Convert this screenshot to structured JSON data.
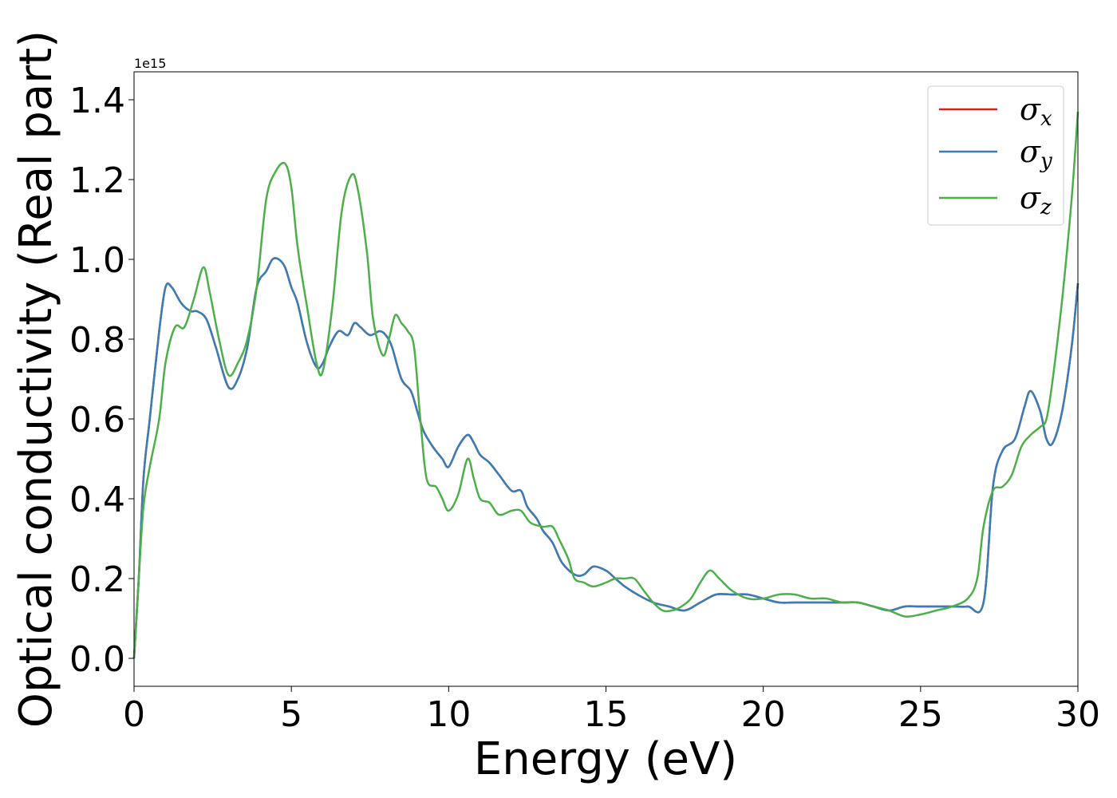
{
  "chart_data": {
    "type": "line",
    "xlabel": "Energy (eV)",
    "ylabel": "Optical conductivity (Real part)",
    "y_offset_text": "1e15",
    "xlim": [
      0,
      30
    ],
    "ylim": [
      -0.07,
      1.47
    ],
    "y_multiplier": 1000000000000000.0,
    "x_ticks": [
      0,
      5,
      10,
      15,
      20,
      25,
      30
    ],
    "x_tick_labels": [
      "0",
      "5",
      "10",
      "15",
      "20",
      "25",
      "30"
    ],
    "y_ticks": [
      0.0,
      0.2,
      0.4,
      0.6,
      0.8,
      1.0,
      1.2,
      1.4
    ],
    "y_tick_labels": [
      "0.0",
      "0.2",
      "0.4",
      "0.6",
      "0.8",
      "1.0",
      "1.2",
      "1.4"
    ],
    "grid": false,
    "legend_position": "top-right",
    "series": [
      {
        "name": "σx",
        "symbol": "σ",
        "subscript": "x",
        "color": "#e41a1c",
        "x": [
          0,
          0.15,
          0.3,
          0.5,
          0.8,
          1.0,
          1.2,
          1.5,
          1.8,
          2.0,
          2.3,
          2.6,
          3.0,
          3.3,
          3.6,
          3.9,
          4.2,
          4.4,
          4.6,
          4.8,
          5.0,
          5.2,
          5.5,
          5.8,
          6.0,
          6.2,
          6.5,
          6.8,
          7.0,
          7.2,
          7.5,
          7.8,
          8.0,
          8.2,
          8.5,
          8.8,
          9.0,
          9.2,
          9.5,
          9.8,
          10.0,
          10.3,
          10.6,
          10.8,
          11.0,
          11.3,
          11.6,
          12.0,
          12.3,
          12.5,
          12.8,
          13.0,
          13.3,
          13.6,
          14.0,
          14.3,
          14.6,
          15.0,
          15.3,
          15.6,
          16.0,
          16.5,
          17.0,
          17.5,
          18.0,
          18.5,
          19.0,
          19.5,
          20.0,
          20.5,
          21.0,
          21.5,
          22.0,
          22.5,
          23.0,
          23.5,
          24.0,
          24.5,
          25.0,
          25.5,
          26.0,
          26.5,
          27.0,
          27.3,
          27.6,
          28.0,
          28.3,
          28.5,
          28.8,
          29.0,
          29.2,
          29.5,
          29.8,
          30.0
        ],
        "y": [
          0.0,
          0.2,
          0.45,
          0.6,
          0.82,
          0.93,
          0.93,
          0.89,
          0.87,
          0.87,
          0.85,
          0.78,
          0.68,
          0.7,
          0.78,
          0.93,
          0.97,
          1.0,
          1.0,
          0.98,
          0.93,
          0.89,
          0.79,
          0.73,
          0.74,
          0.78,
          0.82,
          0.81,
          0.84,
          0.83,
          0.81,
          0.82,
          0.81,
          0.78,
          0.7,
          0.67,
          0.62,
          0.57,
          0.53,
          0.5,
          0.48,
          0.53,
          0.56,
          0.54,
          0.51,
          0.49,
          0.46,
          0.42,
          0.42,
          0.38,
          0.35,
          0.32,
          0.29,
          0.24,
          0.21,
          0.21,
          0.23,
          0.22,
          0.2,
          0.18,
          0.16,
          0.14,
          0.13,
          0.12,
          0.14,
          0.16,
          0.16,
          0.16,
          0.15,
          0.14,
          0.14,
          0.14,
          0.14,
          0.14,
          0.14,
          0.13,
          0.12,
          0.13,
          0.13,
          0.13,
          0.13,
          0.13,
          0.14,
          0.43,
          0.52,
          0.55,
          0.63,
          0.67,
          0.62,
          0.55,
          0.54,
          0.62,
          0.78,
          0.94
        ]
      },
      {
        "name": "σy",
        "symbol": "σ",
        "subscript": "y",
        "color": "#377eb8",
        "x": [
          0,
          0.15,
          0.3,
          0.5,
          0.8,
          1.0,
          1.2,
          1.5,
          1.8,
          2.0,
          2.3,
          2.6,
          3.0,
          3.3,
          3.6,
          3.9,
          4.2,
          4.4,
          4.6,
          4.8,
          5.0,
          5.2,
          5.5,
          5.8,
          6.0,
          6.2,
          6.5,
          6.8,
          7.0,
          7.2,
          7.5,
          7.8,
          8.0,
          8.2,
          8.5,
          8.8,
          9.0,
          9.2,
          9.5,
          9.8,
          10.0,
          10.3,
          10.6,
          10.8,
          11.0,
          11.3,
          11.6,
          12.0,
          12.3,
          12.5,
          12.8,
          13.0,
          13.3,
          13.6,
          14.0,
          14.3,
          14.6,
          15.0,
          15.3,
          15.6,
          16.0,
          16.5,
          17.0,
          17.5,
          18.0,
          18.5,
          19.0,
          19.5,
          20.0,
          20.5,
          21.0,
          21.5,
          22.0,
          22.5,
          23.0,
          23.5,
          24.0,
          24.5,
          25.0,
          25.5,
          26.0,
          26.5,
          27.0,
          27.3,
          27.6,
          28.0,
          28.3,
          28.5,
          28.8,
          29.0,
          29.2,
          29.5,
          29.8,
          30.0
        ],
        "y": [
          0.0,
          0.2,
          0.45,
          0.6,
          0.82,
          0.93,
          0.93,
          0.89,
          0.87,
          0.87,
          0.85,
          0.78,
          0.68,
          0.7,
          0.78,
          0.93,
          0.97,
          1.0,
          1.0,
          0.98,
          0.93,
          0.89,
          0.79,
          0.73,
          0.74,
          0.78,
          0.82,
          0.81,
          0.84,
          0.83,
          0.81,
          0.82,
          0.81,
          0.78,
          0.7,
          0.67,
          0.62,
          0.57,
          0.53,
          0.5,
          0.48,
          0.53,
          0.56,
          0.54,
          0.51,
          0.49,
          0.46,
          0.42,
          0.42,
          0.38,
          0.35,
          0.32,
          0.29,
          0.24,
          0.21,
          0.21,
          0.23,
          0.22,
          0.2,
          0.18,
          0.16,
          0.14,
          0.13,
          0.12,
          0.14,
          0.16,
          0.16,
          0.16,
          0.15,
          0.14,
          0.14,
          0.14,
          0.14,
          0.14,
          0.14,
          0.13,
          0.12,
          0.13,
          0.13,
          0.13,
          0.13,
          0.13,
          0.14,
          0.43,
          0.52,
          0.55,
          0.63,
          0.67,
          0.62,
          0.55,
          0.54,
          0.62,
          0.78,
          0.94
        ]
      },
      {
        "name": "σz",
        "symbol": "σ",
        "subscript": "z",
        "color": "#4daf4a",
        "x": [
          0,
          0.15,
          0.3,
          0.5,
          0.8,
          1.0,
          1.3,
          1.6,
          1.9,
          2.2,
          2.4,
          2.7,
          3.0,
          3.3,
          3.6,
          3.9,
          4.2,
          4.5,
          4.8,
          5.0,
          5.2,
          5.5,
          5.8,
          6.0,
          6.3,
          6.6,
          6.9,
          7.1,
          7.4,
          7.6,
          7.9,
          8.1,
          8.3,
          8.5,
          8.7,
          8.9,
          9.1,
          9.3,
          9.6,
          9.8,
          10.0,
          10.3,
          10.6,
          10.8,
          11.0,
          11.3,
          11.6,
          12.0,
          12.3,
          12.6,
          13.0,
          13.3,
          13.5,
          13.8,
          14.0,
          14.3,
          14.6,
          15.0,
          15.3,
          15.6,
          15.9,
          16.2,
          16.5,
          16.8,
          17.1,
          17.4,
          17.7,
          18.0,
          18.3,
          18.6,
          19.0,
          19.5,
          20.0,
          20.5,
          21.0,
          21.5,
          22.0,
          22.5,
          23.0,
          23.5,
          24.0,
          24.5,
          25.0,
          25.5,
          26.0,
          26.5,
          26.8,
          27.0,
          27.3,
          27.6,
          27.9,
          28.2,
          28.5,
          28.8,
          29.0,
          29.2,
          29.5,
          29.8,
          30.0
        ],
        "y": [
          0.0,
          0.2,
          0.38,
          0.48,
          0.6,
          0.74,
          0.83,
          0.83,
          0.9,
          0.98,
          0.92,
          0.8,
          0.71,
          0.74,
          0.8,
          0.93,
          1.15,
          1.22,
          1.24,
          1.18,
          1.03,
          0.88,
          0.74,
          0.72,
          0.88,
          1.12,
          1.21,
          1.18,
          1.02,
          0.85,
          0.76,
          0.8,
          0.86,
          0.84,
          0.82,
          0.78,
          0.6,
          0.45,
          0.43,
          0.4,
          0.37,
          0.41,
          0.5,
          0.45,
          0.4,
          0.39,
          0.36,
          0.37,
          0.37,
          0.34,
          0.33,
          0.33,
          0.3,
          0.25,
          0.2,
          0.19,
          0.18,
          0.19,
          0.2,
          0.2,
          0.2,
          0.17,
          0.14,
          0.12,
          0.12,
          0.13,
          0.15,
          0.19,
          0.22,
          0.2,
          0.17,
          0.15,
          0.15,
          0.16,
          0.16,
          0.15,
          0.15,
          0.14,
          0.14,
          0.13,
          0.12,
          0.105,
          0.11,
          0.12,
          0.13,
          0.15,
          0.2,
          0.33,
          0.42,
          0.43,
          0.46,
          0.53,
          0.56,
          0.58,
          0.6,
          0.7,
          0.9,
          1.15,
          1.37
        ]
      }
    ]
  }
}
